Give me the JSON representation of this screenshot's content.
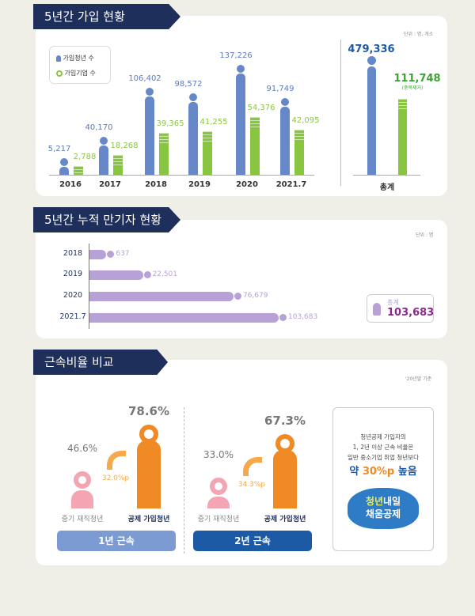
{
  "chart_data": [
    {
      "type": "bar",
      "title": "5년간 가입 현황",
      "unit": "단위 : 명, 개소",
      "categories": [
        "2016",
        "2017",
        "2018",
        "2019",
        "2020",
        "2021.7"
      ],
      "series": [
        {
          "name": "가입청년 수",
          "color": "#6688c9",
          "values": [
            5217,
            40170,
            106402,
            98572,
            137226,
            91749
          ],
          "labels": [
            "5,217",
            "40,170",
            "106,402",
            "98,572",
            "137,226",
            "91,749"
          ]
        },
        {
          "name": "가입기업 수",
          "color": "#88c540",
          "values": [
            2788,
            18268,
            39365,
            41255,
            54376,
            42095
          ],
          "labels": [
            "2,788",
            "18,268",
            "39,365",
            "41,255",
            "54,376",
            "42,095"
          ]
        }
      ],
      "total": {
        "label": "총계",
        "youth": 479336,
        "youth_label": "479,336",
        "firms": 111748,
        "firms_label": "111,748",
        "firms_note": "(중복제거)"
      }
    },
    {
      "type": "bar",
      "orientation": "horizontal",
      "title": "5년간 누적 만기자 현황",
      "unit": "단위 : 명",
      "categories": [
        "2018",
        "2019",
        "2020",
        "2021.7"
      ],
      "values": [
        637,
        22501,
        76679,
        103683
      ],
      "labels": [
        "637",
        "22,501",
        "76,679",
        "103,683"
      ],
      "color": "#b8a1d6",
      "total": {
        "label": "총계",
        "value": "103,683"
      }
    },
    {
      "type": "bar",
      "title": "근속비율 비교",
      "unit": "'20년말 기준",
      "groups": [
        {
          "name": "1년 근속",
          "general": "46.6%",
          "member": "78.6%",
          "diff": "32.0%p",
          "color": "#7b9bd2"
        },
        {
          "name": "2년 근속",
          "general": "33.0%",
          "member": "67.3%",
          "diff": "34.3%p",
          "color": "#1d5aa6"
        }
      ],
      "general_label": "중기 재직청년",
      "member_label": "공제 가입청년",
      "callout": {
        "line1": "청년공제 가입자의",
        "line2": "1, 2년 이상 근속 비율은",
        "line3": "일반 중소기업 취업 청년보다",
        "pre": "약",
        "highlight": "30%p",
        "post": "높음",
        "logo1a": "청년",
        "logo1b": "내일",
        "logo2": "채움공제"
      }
    }
  ]
}
